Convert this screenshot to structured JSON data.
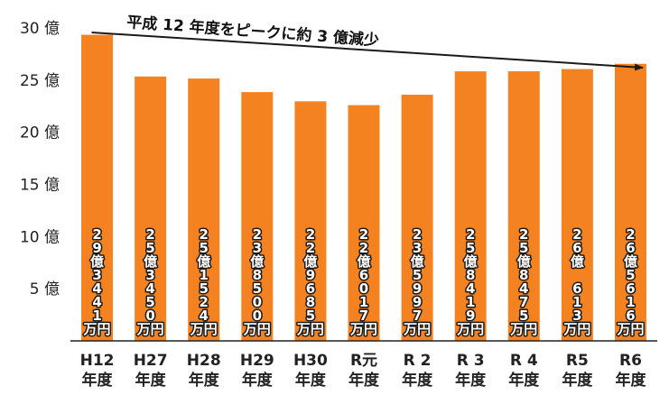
{
  "chart_data": {
    "type": "bar",
    "title": "",
    "xlabel": "",
    "ylabel": "",
    "ylim": [
      0,
      30
    ],
    "y_ticks": [
      {
        "value": 5,
        "label": "5 億"
      },
      {
        "value": 10,
        "label": "10 億"
      },
      {
        "value": 15,
        "label": "15 億"
      },
      {
        "value": 20,
        "label": "20 億"
      },
      {
        "value": 25,
        "label": "25 億"
      },
      {
        "value": 30,
        "label": "30 億"
      }
    ],
    "categories": [
      {
        "line1": "H12",
        "line2": "年度"
      },
      {
        "line1": "H27",
        "line2": "年度"
      },
      {
        "line1": "H28",
        "line2": "年度"
      },
      {
        "line1": "H29",
        "line2": "年度"
      },
      {
        "line1": "H30",
        "line2": "年度"
      },
      {
        "line1": "R元",
        "line2": "年度"
      },
      {
        "line1": "R 2",
        "line2": "年度"
      },
      {
        "line1": "R 3",
        "line2": "年度"
      },
      {
        "line1": "R 4",
        "line2": "年度"
      },
      {
        "line1": "R5",
        "line2": "年度"
      },
      {
        "line1": "R6",
        "line2": "年度"
      }
    ],
    "values": [
      29.3441,
      25.345,
      25.1524,
      23.85,
      22.9685,
      22.6017,
      23.5997,
      25.8419,
      25.8475,
      26.0613,
      26.5616
    ],
    "data_labels": [
      "29億3441万円",
      "25億3450万円",
      "25億1524万円",
      "23億8500万円",
      "22億9685万円",
      "22億6017万円",
      "23億5997万円",
      "25億8419万円",
      "25億8475万円",
      "26億 613万円",
      "26億5616万円"
    ],
    "annotation": "平成 12 年度をピークに約 3 億減少",
    "grid": false,
    "legend": "none",
    "colors": {
      "bar": "#f58220",
      "axis": "#222222",
      "arrow": "#1a1a1a"
    }
  }
}
